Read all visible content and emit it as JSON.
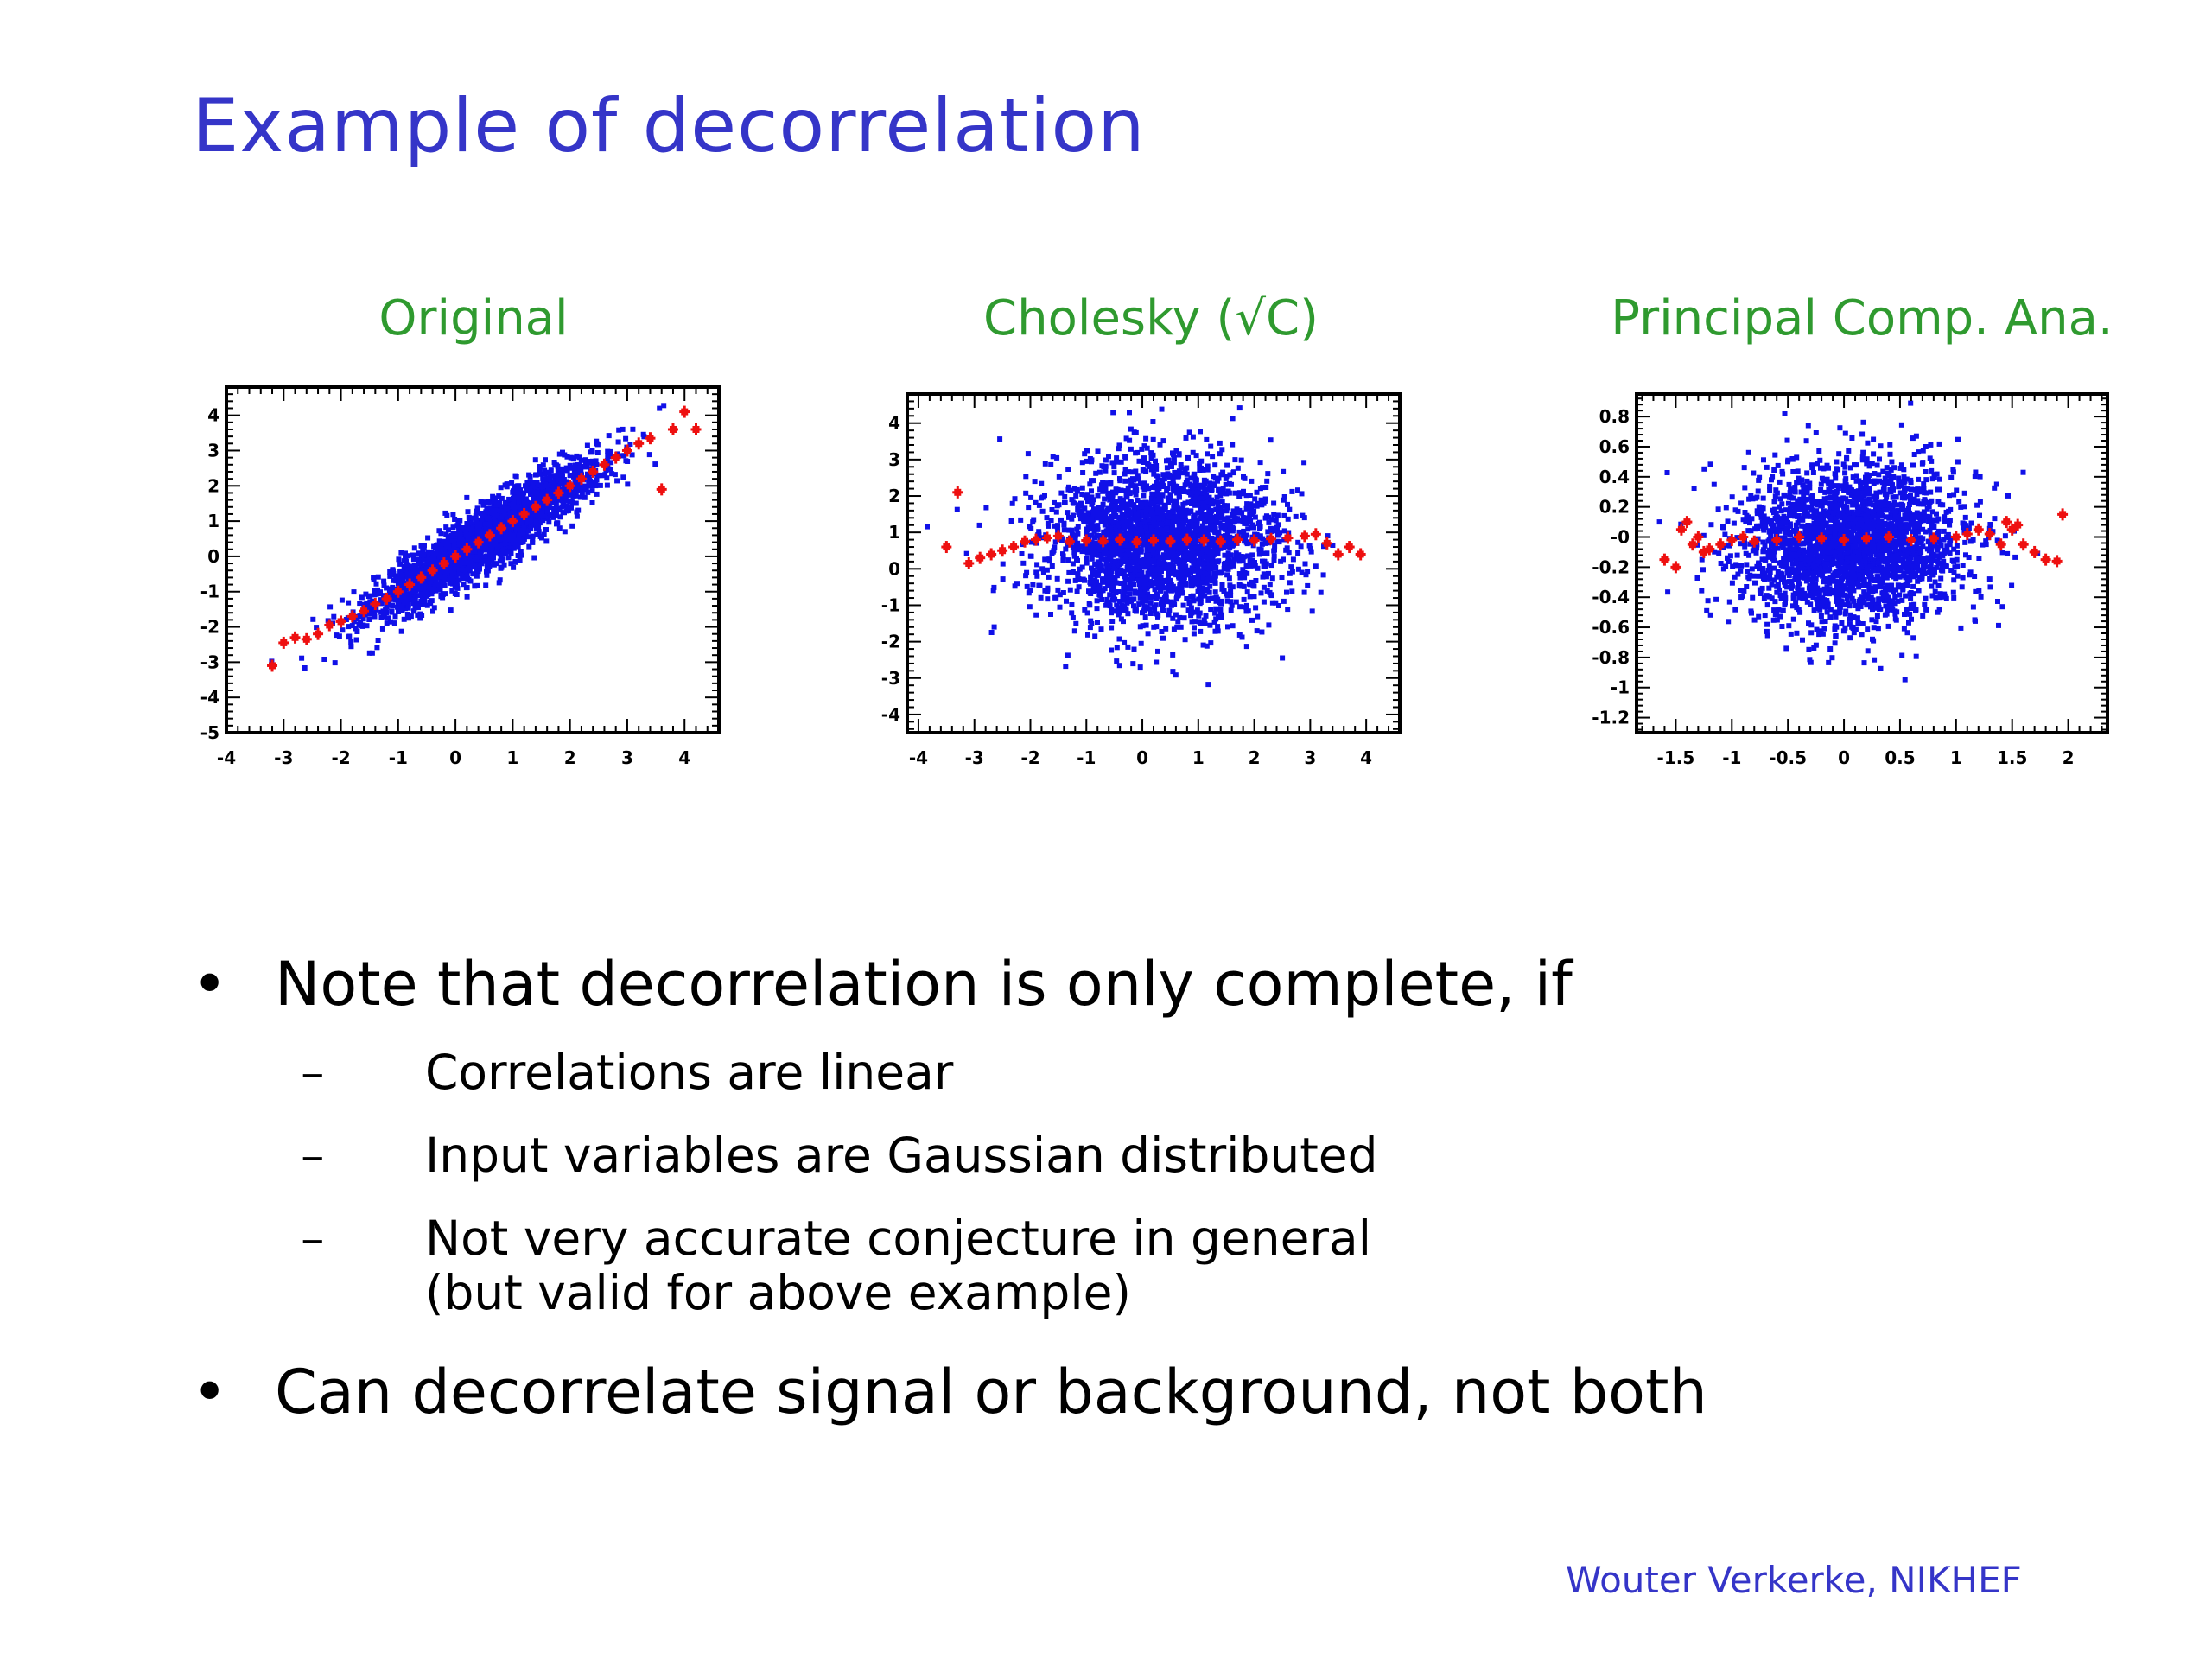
{
  "slide": {
    "title": "Example of decorrelation",
    "footer": "Wouter Verkerke, NIKHEF"
  },
  "bullets": [
    {
      "text": "Note that decorrelation is only complete, if",
      "subitems": [
        {
          "lines": [
            "Correlations are linear"
          ]
        },
        {
          "lines": [
            "Input variables are Gaussian distributed"
          ]
        },
        {
          "lines": [
            "Not very accurate conjecture in general",
            "(but valid for above example)"
          ]
        }
      ]
    },
    {
      "text": "Can decorrelate signal or background, not both",
      "subitems": []
    }
  ],
  "colors": {
    "title": "#3535c8",
    "panel_title": "#2f9a2f",
    "scatter": "#1010e8",
    "profile": "#ee1010",
    "footer": "#3535c8"
  },
  "chart_data": [
    {
      "type": "scatter",
      "panel_title": "Original",
      "xlim": [
        -4,
        4.6
      ],
      "ylim": [
        -5,
        4.8
      ],
      "xticks": [
        -4,
        -3,
        -2,
        -1,
        0,
        1,
        2,
        3,
        4
      ],
      "xtick_labels": [
        "-4",
        "-3",
        "-2",
        "-1",
        "0",
        "1",
        "2",
        "3",
        "4"
      ],
      "yticks": [
        -5,
        -4,
        -3,
        -2,
        -1,
        0,
        1,
        2,
        3,
        4
      ],
      "ytick_labels": [
        "-5",
        "-4",
        "-3",
        "-2",
        "-1",
        "0",
        "1",
        "2",
        "3",
        "4"
      ],
      "scatter_model": {
        "x_mean": 0.5,
        "x_sd": 1.0,
        "slope": 1.0,
        "intercept": 0.0,
        "y_noise_sd": 0.45,
        "n": 2400
      },
      "profile_series": {
        "x": [
          -3.2,
          -3.0,
          -2.8,
          -2.6,
          -2.4,
          -2.2,
          -2.0,
          -1.8,
          -1.6,
          -1.4,
          -1.2,
          -1.0,
          -0.8,
          -0.6,
          -0.4,
          -0.2,
          0.0,
          0.2,
          0.4,
          0.6,
          0.8,
          1.0,
          1.2,
          1.4,
          1.6,
          1.8,
          2.0,
          2.2,
          2.4,
          2.6,
          2.8,
          3.0,
          3.2,
          3.4,
          3.6,
          3.8,
          4.0,
          4.2
        ],
        "y": [
          -3.1,
          -2.45,
          -2.3,
          -2.35,
          -2.2,
          -1.95,
          -1.85,
          -1.7,
          -1.55,
          -1.35,
          -1.2,
          -1.0,
          -0.8,
          -0.6,
          -0.4,
          -0.2,
          0.0,
          0.2,
          0.4,
          0.6,
          0.8,
          1.0,
          1.2,
          1.4,
          1.6,
          1.8,
          2.0,
          2.2,
          2.4,
          2.6,
          2.8,
          3.0,
          3.2,
          3.35,
          1.9,
          3.6,
          4.1,
          3.6
        ]
      }
    },
    {
      "type": "scatter",
      "panel_title": "Cholesky (√C)",
      "xlim": [
        -4.2,
        4.6
      ],
      "ylim": [
        -4.5,
        4.8
      ],
      "xticks": [
        -4,
        -3,
        -2,
        -1,
        0,
        1,
        2,
        3,
        4
      ],
      "xtick_labels": [
        "-4",
        "-3",
        "-2",
        "-1",
        "0",
        "1",
        "2",
        "3",
        "4"
      ],
      "yticks": [
        -4,
        -3,
        -2,
        -1,
        0,
        1,
        2,
        3,
        4
      ],
      "ytick_labels": [
        "-4",
        "-3",
        "-2",
        "-1",
        "0",
        "1",
        "2",
        "3",
        "4"
      ],
      "scatter_model": {
        "x_mean": 0.35,
        "x_sd": 1.05,
        "slope": 0.0,
        "intercept": 0.7,
        "y_noise_sd": 1.15,
        "n": 2600
      },
      "profile_series": {
        "x": [
          -3.5,
          -3.1,
          -2.9,
          -2.7,
          -2.5,
          -2.3,
          -2.1,
          -1.9,
          -1.7,
          -1.5,
          -1.3,
          -1.0,
          -0.7,
          -0.4,
          -0.1,
          0.2,
          0.5,
          0.8,
          1.1,
          1.4,
          1.7,
          2.0,
          2.3,
          2.6,
          2.9,
          3.1,
          3.3,
          3.5,
          3.7,
          3.9,
          -3.3
        ],
        "y": [
          0.6,
          0.15,
          0.3,
          0.4,
          0.5,
          0.6,
          0.75,
          0.8,
          0.85,
          0.9,
          0.75,
          0.78,
          0.76,
          0.8,
          0.74,
          0.78,
          0.76,
          0.8,
          0.78,
          0.75,
          0.8,
          0.78,
          0.82,
          0.85,
          0.9,
          0.95,
          0.7,
          0.4,
          0.6,
          0.4,
          2.1
        ]
      }
    },
    {
      "type": "scatter",
      "panel_title": "Principal Comp. Ana.",
      "xlim": [
        -1.85,
        2.35
      ],
      "ylim": [
        -1.3,
        0.95
      ],
      "xticks": [
        -1.5,
        -1,
        -0.5,
        0,
        0.5,
        1,
        1.5,
        2
      ],
      "xtick_labels": [
        "-1.5",
        "-1",
        "-0.5",
        "0",
        "0.5",
        "1",
        "1.5",
        "2"
      ],
      "yticks": [
        -1.2,
        -1,
        -0.8,
        -0.6,
        -0.4,
        -0.2,
        0,
        0.2,
        0.4,
        0.6,
        0.8
      ],
      "ytick_labels": [
        "-1.2",
        "-1",
        "-0.8",
        "-0.6",
        "-0.4",
        "-0.2",
        "-0",
        "0.2",
        "0.4",
        "0.6",
        "0.8"
      ],
      "scatter_model": {
        "x_mean": 0.05,
        "x_sd": 0.5,
        "slope": 0.0,
        "intercept": -0.05,
        "y_noise_sd": 0.27,
        "n": 2600
      },
      "profile_series": {
        "x": [
          -1.6,
          -1.5,
          -1.45,
          -1.4,
          -1.35,
          -1.3,
          -1.25,
          -1.2,
          -1.1,
          -1.0,
          -0.9,
          -0.8,
          -0.6,
          -0.4,
          -0.2,
          0.0,
          0.2,
          0.4,
          0.6,
          0.8,
          1.0,
          1.1,
          1.2,
          1.3,
          1.4,
          1.45,
          1.5,
          1.55,
          1.6,
          1.7,
          1.8,
          1.9,
          1.95
        ],
        "y": [
          -0.15,
          -0.2,
          0.05,
          0.1,
          -0.05,
          0.0,
          -0.1,
          -0.08,
          -0.05,
          -0.02,
          0.0,
          -0.03,
          -0.02,
          0.0,
          -0.01,
          -0.02,
          -0.01,
          0.0,
          -0.02,
          -0.01,
          0.0,
          0.02,
          0.05,
          0.02,
          -0.05,
          0.1,
          0.05,
          0.08,
          -0.05,
          -0.1,
          -0.15,
          -0.16,
          0.15
        ]
      }
    }
  ]
}
